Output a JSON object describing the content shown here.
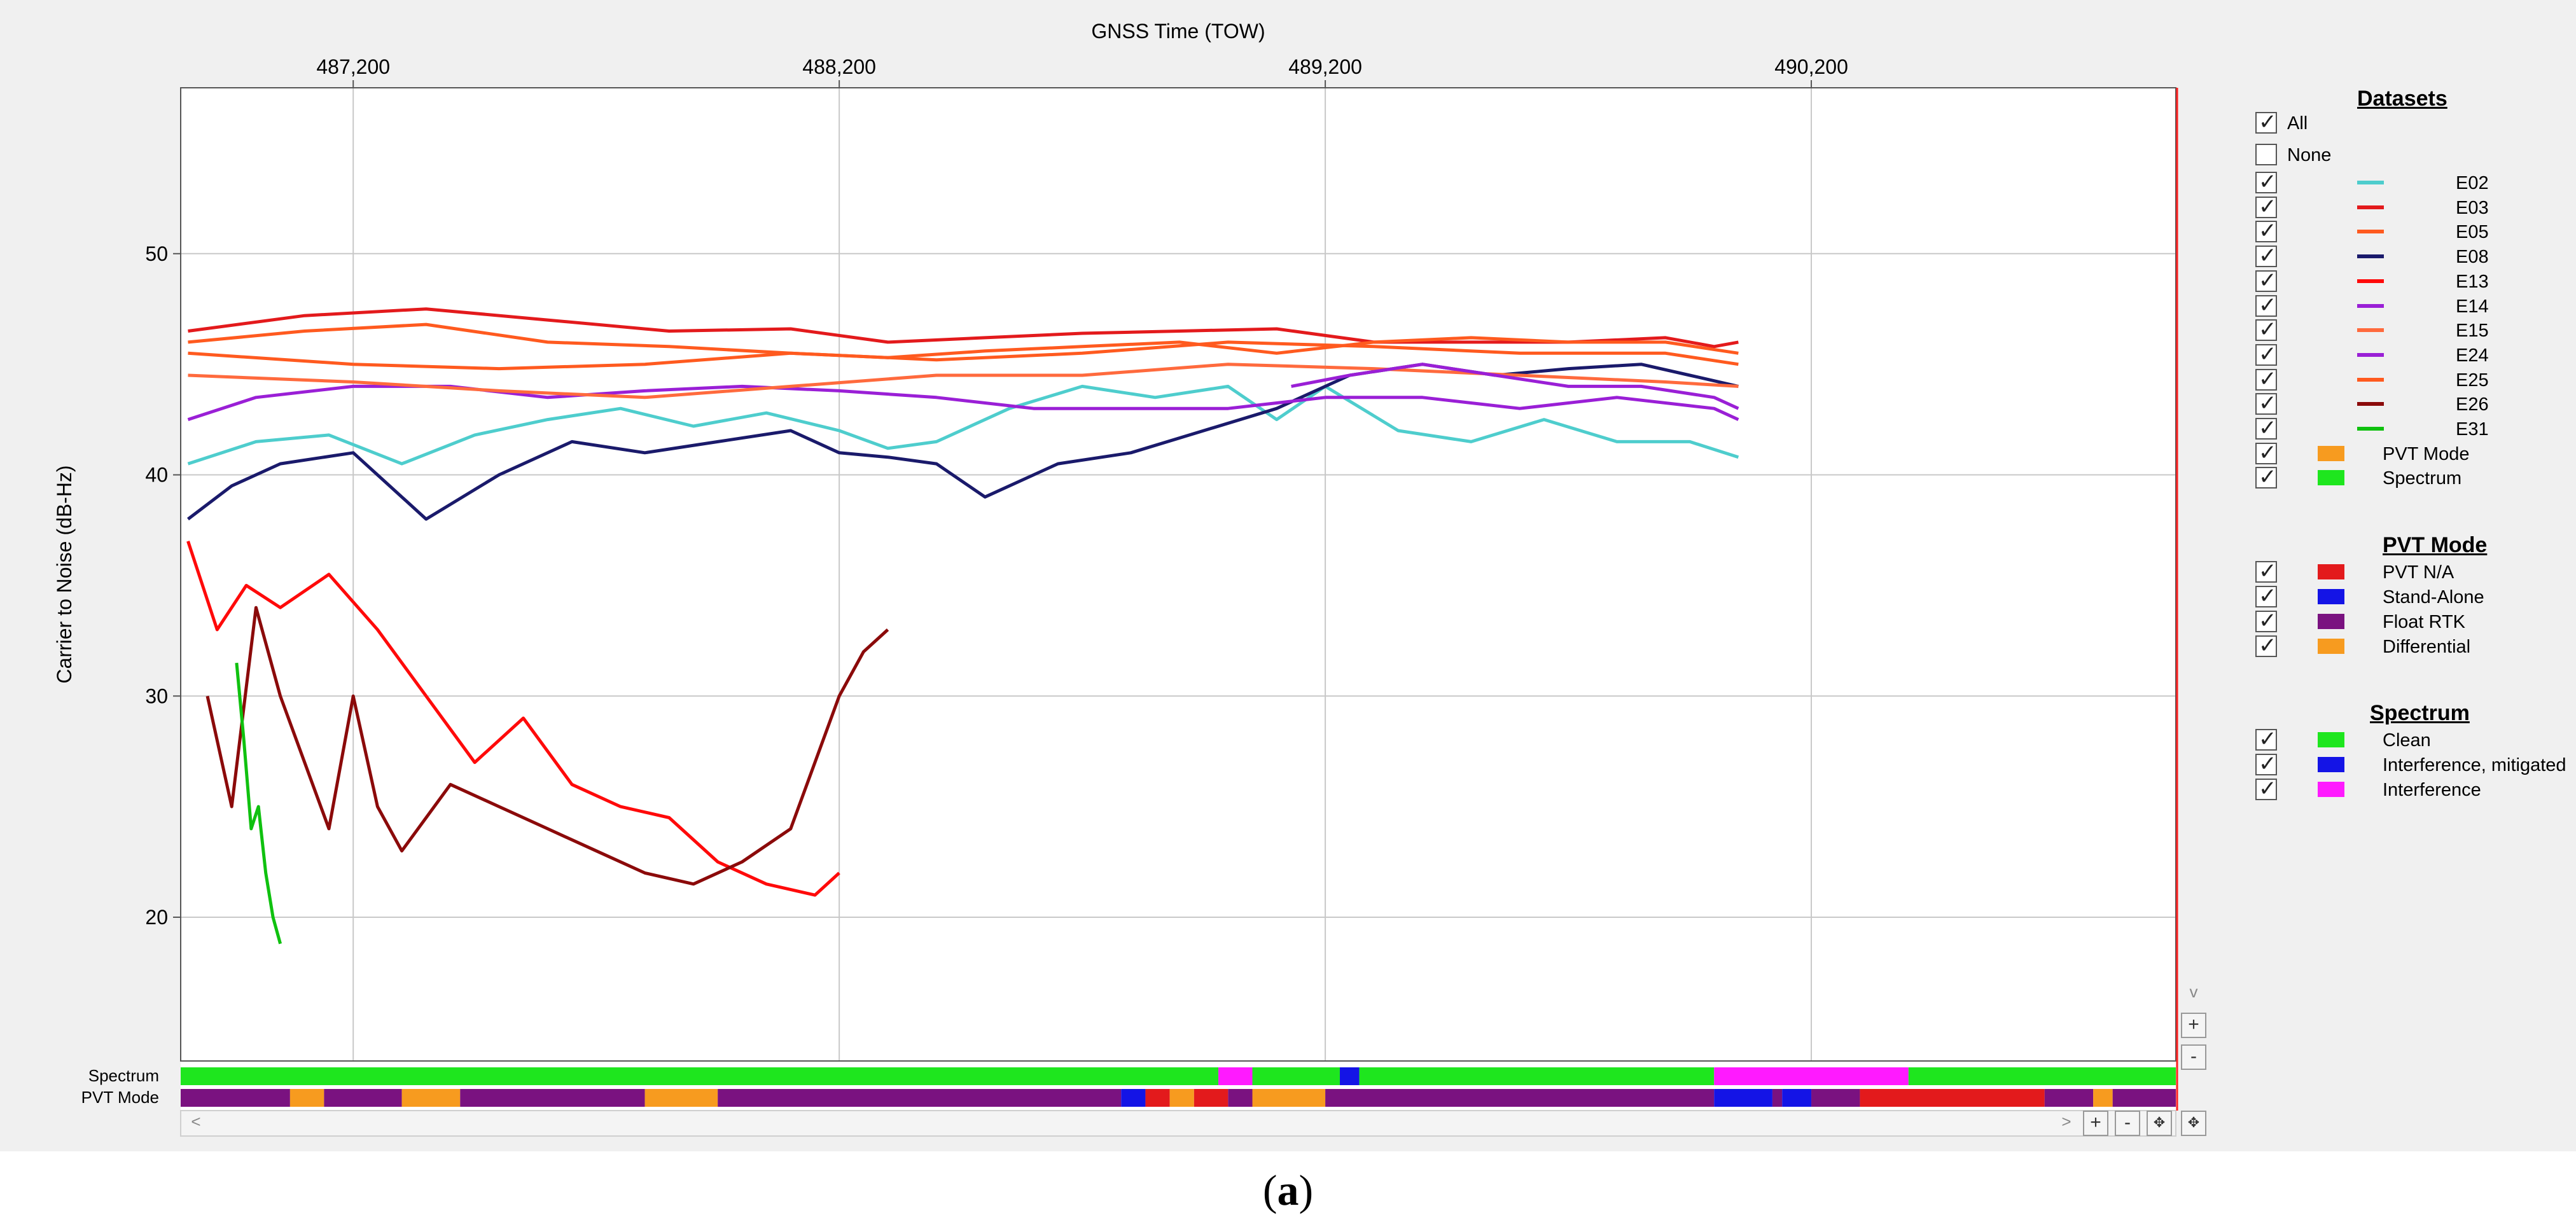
{
  "chart_data": {
    "type": "line",
    "title": "",
    "xlabel": "GNSS Time (TOW)",
    "ylabel": "Carrier to Noise (dB-Hz)",
    "xlim": [
      486845,
      490950
    ],
    "ylim": [
      13.5,
      57.5
    ],
    "xticks": [
      {
        "value": 487200,
        "label": "487,200"
      },
      {
        "value": 488200,
        "label": "488,200"
      },
      {
        "value": 489200,
        "label": "489,200"
      },
      {
        "value": 490200,
        "label": "490,200"
      }
    ],
    "yticks": [
      {
        "value": 20,
        "label": "20"
      },
      {
        "value": 30,
        "label": "30"
      },
      {
        "value": 40,
        "label": "40"
      },
      {
        "value": 50,
        "label": "50"
      }
    ],
    "grid": true,
    "series": [
      {
        "name": "E02",
        "color": "#4ecdcd",
        "x": [
          486860,
          487000,
          487150,
          487300,
          487450,
          487600,
          487750,
          487900,
          488050,
          488200,
          488300,
          488400,
          488550,
          488700,
          488850,
          489000,
          489100,
          489200,
          489350,
          489500,
          489650,
          489800,
          489950,
          490050
        ],
        "y": [
          40.5,
          41.5,
          41.8,
          40.5,
          41.8,
          42.5,
          43.0,
          42.2,
          42.8,
          42.0,
          41.2,
          41.5,
          43.0,
          44.0,
          43.5,
          44.0,
          42.5,
          44.0,
          42.0,
          41.5,
          42.5,
          41.5,
          41.5,
          40.8
        ]
      },
      {
        "name": "E03",
        "color": "#e31a1c",
        "x": [
          486860,
          487100,
          487350,
          487600,
          487850,
          488100,
          488300,
          488500,
          488700,
          488900,
          489100,
          489300,
          489500,
          489700,
          489900,
          490000,
          490050
        ],
        "y": [
          46.5,
          47.2,
          47.5,
          47.0,
          46.5,
          46.6,
          46.0,
          46.2,
          46.4,
          46.5,
          46.6,
          46.0,
          46.0,
          46.0,
          46.2,
          45.8,
          46.0
        ]
      },
      {
        "name": "E05",
        "color": "#ff5a1f",
        "x": [
          486860,
          487100,
          487350,
          487600,
          487850,
          488100,
          488300,
          488500,
          488700,
          488900,
          489100,
          489300,
          489500,
          489700,
          489900,
          490050
        ],
        "y": [
          46.0,
          46.5,
          46.8,
          46.0,
          45.8,
          45.5,
          45.3,
          45.6,
          45.8,
          46.0,
          45.5,
          46.0,
          46.2,
          46.0,
          46.0,
          45.5
        ]
      },
      {
        "name": "E08",
        "color": "#1a1a6b",
        "x": [
          486860,
          486950,
          487050,
          487200,
          487350,
          487500,
          487650,
          487800,
          487950,
          488100,
          488200,
          488300,
          488400,
          488500,
          488650,
          488800,
          488950,
          489100,
          489250,
          489400,
          489550,
          489700,
          489850,
          489950,
          490050
        ],
        "y": [
          38.0,
          39.5,
          40.5,
          41.0,
          38.0,
          40.0,
          41.5,
          41.0,
          41.5,
          42.0,
          41.0,
          40.8,
          40.5,
          39.0,
          40.5,
          41.0,
          42.0,
          43.0,
          44.5,
          45.0,
          44.5,
          44.8,
          45.0,
          44.5,
          44.0
        ]
      },
      {
        "name": "E13",
        "color": "#ff0a0a",
        "x": [
          486860,
          486920,
          486980,
          487050,
          487150,
          487250,
          487350,
          487450,
          487550,
          487650,
          487750,
          487850,
          487950,
          488050,
          488150,
          488200
        ],
        "y": [
          37.0,
          33.0,
          35.0,
          34.0,
          35.5,
          33.0,
          30.0,
          27.0,
          29.0,
          26.0,
          25.0,
          24.5,
          22.5,
          21.5,
          21.0,
          22.0
        ]
      },
      {
        "name": "E14",
        "color": "#9a1fd6",
        "x": [
          486860,
          487000,
          487200,
          487400,
          487600,
          487800,
          488000,
          488200,
          488400,
          488600,
          488800,
          489000,
          489200,
          489400,
          489600,
          489800,
          490000,
          490050
        ],
        "y": [
          42.5,
          43.5,
          44.0,
          44.0,
          43.5,
          43.8,
          44.0,
          43.8,
          43.5,
          43.0,
          43.0,
          43.0,
          43.5,
          43.5,
          43.0,
          43.5,
          43.0,
          42.5
        ]
      },
      {
        "name": "E15",
        "color": "#ff6a3d",
        "x": [
          486860,
          487200,
          487500,
          487800,
          488100,
          488400,
          488700,
          489000,
          489300,
          489600,
          489900,
          490050
        ],
        "y": [
          44.5,
          44.2,
          43.8,
          43.5,
          44.0,
          44.5,
          44.5,
          45.0,
          44.8,
          44.5,
          44.2,
          44.0
        ]
      },
      {
        "name": "E24",
        "color": "#9a1fd6",
        "x": [
          489130,
          489250,
          489400,
          489550,
          489700,
          489850,
          490000,
          490050
        ],
        "y": [
          44.0,
          44.5,
          45.0,
          44.5,
          44.0,
          44.0,
          43.5,
          43.0
        ]
      },
      {
        "name": "E25",
        "color": "#ff5a1f",
        "x": [
          486860,
          487200,
          487500,
          487800,
          488100,
          488400,
          488700,
          489000,
          489300,
          489600,
          489900,
          490050
        ],
        "y": [
          45.5,
          45.0,
          44.8,
          45.0,
          45.5,
          45.2,
          45.5,
          46.0,
          45.8,
          45.5,
          45.5,
          45.0
        ]
      },
      {
        "name": "E26",
        "color": "#8b0a0a",
        "x": [
          486900,
          486950,
          487000,
          487050,
          487100,
          487150,
          487200,
          487250,
          487300,
          487400,
          487500,
          487600,
          487700,
          487800,
          487900,
          488000,
          488100,
          488200,
          488250,
          488300
        ],
        "y": [
          30.0,
          25.0,
          34.0,
          30.0,
          27.0,
          24.0,
          30.0,
          25.0,
          23.0,
          26.0,
          25.0,
          24.0,
          23.0,
          22.0,
          21.5,
          22.5,
          24.0,
          30.0,
          32.0,
          33.0
        ]
      },
      {
        "name": "E31",
        "color": "#0fc10f",
        "x": [
          486960,
          486975,
          486990,
          487005,
          487020,
          487035,
          487050
        ],
        "y": [
          31.5,
          28.0,
          24.0,
          25.0,
          22.0,
          20.0,
          18.8
        ]
      }
    ],
    "legend": {
      "title": "Datasets",
      "placement": "right",
      "all_label": "All",
      "none_label": "None",
      "extra_items": [
        {
          "name": "PVT Mode",
          "color": "#f79b1f"
        },
        {
          "name": "Spectrum",
          "color": "#1ee61e"
        }
      ]
    },
    "strips": [
      {
        "name": "Spectrum",
        "segments": [
          {
            "start": 486845,
            "end": 488980,
            "state": "Clean"
          },
          {
            "start": 488980,
            "end": 489050,
            "state": "Interference"
          },
          {
            "start": 489050,
            "end": 489230,
            "state": "Clean"
          },
          {
            "start": 489230,
            "end": 489270,
            "state": "Interference, mitigated"
          },
          {
            "start": 489270,
            "end": 490000,
            "state": "Clean"
          },
          {
            "start": 490000,
            "end": 490400,
            "state": "Interference"
          },
          {
            "start": 490400,
            "end": 490950,
            "state": "Clean"
          }
        ]
      },
      {
        "name": "PVT Mode",
        "segments": [
          {
            "start": 486845,
            "end": 487070,
            "state": "Float RTK"
          },
          {
            "start": 487070,
            "end": 487140,
            "state": "Differential"
          },
          {
            "start": 487140,
            "end": 487300,
            "state": "Float RTK"
          },
          {
            "start": 487300,
            "end": 487420,
            "state": "Differential"
          },
          {
            "start": 487420,
            "end": 487800,
            "state": "Float RTK"
          },
          {
            "start": 487800,
            "end": 487950,
            "state": "Differential"
          },
          {
            "start": 487950,
            "end": 488780,
            "state": "Float RTK"
          },
          {
            "start": 488780,
            "end": 488830,
            "state": "Stand-Alone"
          },
          {
            "start": 488830,
            "end": 488880,
            "state": "PVT N/A"
          },
          {
            "start": 488880,
            "end": 488930,
            "state": "Differential"
          },
          {
            "start": 488930,
            "end": 489000,
            "state": "PVT N/A"
          },
          {
            "start": 489000,
            "end": 489050,
            "state": "Float RTK"
          },
          {
            "start": 489050,
            "end": 489200,
            "state": "Differential"
          },
          {
            "start": 489200,
            "end": 490000,
            "state": "Float RTK"
          },
          {
            "start": 490000,
            "end": 490120,
            "state": "Stand-Alone"
          },
          {
            "start": 490120,
            "end": 490140,
            "state": "Float RTK"
          },
          {
            "start": 490140,
            "end": 490200,
            "state": "Stand-Alone"
          },
          {
            "start": 490200,
            "end": 490300,
            "state": "Float RTK"
          },
          {
            "start": 490300,
            "end": 490680,
            "state": "PVT N/A"
          },
          {
            "start": 490680,
            "end": 490780,
            "state": "Float RTK"
          },
          {
            "start": 490780,
            "end": 490820,
            "state": "Differential"
          },
          {
            "start": 490820,
            "end": 490950,
            "state": "Float RTK"
          }
        ]
      }
    ]
  },
  "pvt_legend": {
    "title": "PVT Mode",
    "items": [
      {
        "name": "PVT N/A",
        "color": "#e31a1c"
      },
      {
        "name": "Stand-Alone",
        "color": "#1414e6"
      },
      {
        "name": "Float RTK",
        "color": "#7a1280"
      },
      {
        "name": "Differential",
        "color": "#f79b1f"
      }
    ]
  },
  "spectrum_legend": {
    "title": "Spectrum",
    "items": [
      {
        "name": "Clean",
        "color": "#1ee61e"
      },
      {
        "name": "Interference, mitigated",
        "color": "#1414e6"
      },
      {
        "name": "Interference",
        "color": "#ff1aff"
      }
    ]
  },
  "controls": {
    "zoom_in": "+",
    "zoom_out": "-",
    "scroll_left": "<",
    "scroll_right": ">",
    "scroll_down": "v"
  },
  "caption": {
    "label": "a"
  }
}
